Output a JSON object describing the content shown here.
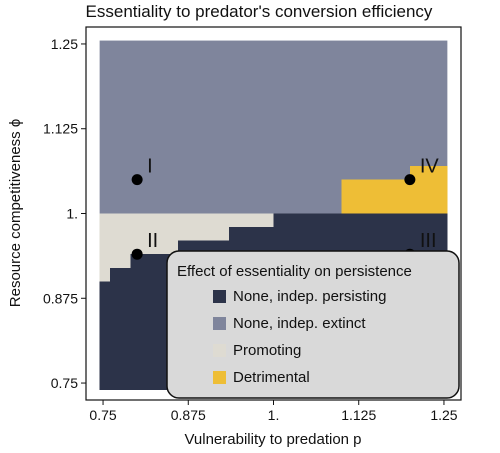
{
  "chart_data": {
    "type": "heatmap",
    "title": "Essentiality to predator's conversion efficiency",
    "xlabel": "Vulnerability to predation p",
    "ylabel": "Resource competitiveness ϕ",
    "xlim": [
      0.725,
      1.275
    ],
    "ylim": [
      0.725,
      1.275
    ],
    "x_ticks": [
      0.75,
      0.875,
      1.0,
      1.125,
      1.25
    ],
    "x_tick_labels": [
      "0.75",
      "0.875",
      "1.",
      "1.125",
      "1.25"
    ],
    "y_ticks": [
      0.75,
      0.875,
      1.0,
      1.125,
      1.25
    ],
    "y_tick_labels": [
      "0.75",
      "0.875",
      "1.",
      "1.125",
      "1.25"
    ],
    "grid": false,
    "legend_placement": "bottom-right",
    "legend": {
      "title": "Effect of essentiality on persistence",
      "entries": [
        {
          "label": "None, indep. persisting",
          "color": "#2c3349"
        },
        {
          "label": "None, indep. extinct",
          "color": "#7f859c"
        },
        {
          "label": "Promoting",
          "color": "#dedbd2"
        },
        {
          "label": "Detrimental",
          "color": "#eebe36"
        }
      ]
    },
    "background_category": "None, indep. extinct",
    "regions": [
      {
        "category": "None, indep. persisting",
        "x_range": [
          0.745,
          1.255
        ],
        "y_range": [
          0.74,
          1.0
        ]
      },
      {
        "category": "Promoting",
        "x_range": [
          0.745,
          1.0
        ],
        "y_range": [
          0.98,
          1.0
        ]
      },
      {
        "category": "Promoting",
        "x_range": [
          0.745,
          0.935
        ],
        "y_range": [
          0.96,
          0.98
        ]
      },
      {
        "category": "Promoting",
        "x_range": [
          0.745,
          0.86
        ],
        "y_range": [
          0.94,
          0.96
        ]
      },
      {
        "category": "Promoting",
        "x_range": [
          0.745,
          0.79
        ],
        "y_range": [
          0.92,
          0.94
        ]
      },
      {
        "category": "Promoting",
        "x_range": [
          0.745,
          0.76
        ],
        "y_range": [
          0.9,
          0.92
        ]
      },
      {
        "category": "Detrimental",
        "x_range": [
          1.2,
          1.255
        ],
        "y_range": [
          1.05,
          1.07
        ]
      },
      {
        "category": "Detrimental",
        "x_range": [
          1.1,
          1.255
        ],
        "y_range": [
          1.0,
          1.05
        ]
      }
    ],
    "points": [
      {
        "label": "I",
        "x": 0.8,
        "y": 1.05
      },
      {
        "label": "II",
        "x": 0.8,
        "y": 0.94
      },
      {
        "label": "III",
        "x": 1.2,
        "y": 0.94
      },
      {
        "label": "IV",
        "x": 1.2,
        "y": 1.05
      }
    ]
  }
}
